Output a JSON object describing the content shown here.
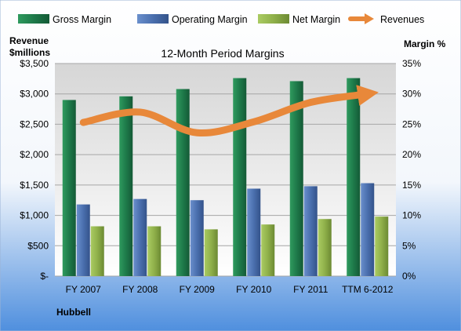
{
  "chart_data": {
    "type": "bar",
    "title": "12-Month Period Margins",
    "company": "Hubbell",
    "categories": [
      "FY 2007",
      "FY 2008",
      "FY 2009",
      "FY 2010",
      "FY 2011",
      "TTM 6-2012"
    ],
    "y_left": {
      "label_line1": "Revenue",
      "label_line2": "$millions",
      "ylim": [
        0,
        3500
      ],
      "ticks": [
        "$-",
        "$500",
        "$1,000",
        "$1,500",
        "$2,000",
        "$2,500",
        "$3,000",
        "$3,500"
      ]
    },
    "y_right": {
      "label": "Margin %",
      "ylim": [
        0,
        35
      ],
      "ticks": [
        "0%",
        "5%",
        "10%",
        "15%",
        "20%",
        "25%",
        "30%",
        "35%"
      ]
    },
    "series": [
      {
        "name": "Gross Margin",
        "type": "bar",
        "axis": "right",
        "color": "#1e7a4a",
        "values": [
          29.0,
          29.6,
          30.8,
          32.6,
          32.1,
          32.6
        ]
      },
      {
        "name": "Operating Margin",
        "type": "bar",
        "axis": "right",
        "color": "#4a6fae",
        "values": [
          11.8,
          12.7,
          12.5,
          14.4,
          14.8,
          15.3
        ]
      },
      {
        "name": "Net Margin",
        "type": "bar",
        "axis": "right",
        "color": "#8fb04a",
        "values": [
          8.2,
          8.2,
          7.7,
          8.5,
          9.4,
          9.8
        ]
      },
      {
        "name": "Revenues",
        "type": "line",
        "axis": "left",
        "color": "#e8883a",
        "values": [
          2530,
          2700,
          2360,
          2540,
          2860,
          3000
        ]
      }
    ],
    "grid": true,
    "legend_position": "top"
  }
}
